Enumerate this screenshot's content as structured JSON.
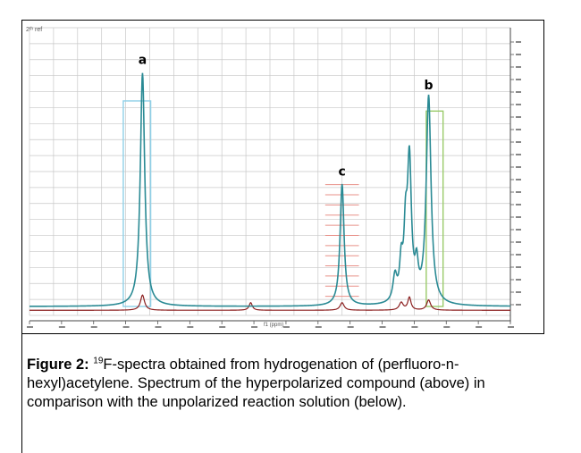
{
  "figure": {
    "corner_label": "2ᵗʰ ref",
    "axis_unit_label": "f1 (ppm)"
  },
  "chart_data": {
    "type": "line",
    "title": "",
    "xlabel": "f1 (ppm)",
    "ylabel": "",
    "xlim": [
      0,
      100
    ],
    "ylim": [
      0,
      100
    ],
    "grid": true,
    "peaks": [
      {
        "label": "a",
        "x": 23.5,
        "height": 92
      },
      {
        "label": "c",
        "x": 65.0,
        "height": 48
      },
      {
        "label": "b",
        "x": 83.0,
        "height": 82
      }
    ],
    "colors": {
      "hyperpolarized": "#2a8a94",
      "unpolarized": "#8b1e1e",
      "grid": "#c8c8c8",
      "peak_a_highlight": "#8fd0e8",
      "peak_c_highlight": "#e89088",
      "peak_b_highlight": "#9acb6a"
    }
  },
  "caption": {
    "figure_label": "Figure 2:",
    "superscript": "19",
    "text": "F-spectra obtained from hydrogenation of (perfluoro-n- hexyl)acetylene. Spectrum of the hyperpolarized compound (above) in comparison with the unpolarized reaction solution (below)."
  }
}
